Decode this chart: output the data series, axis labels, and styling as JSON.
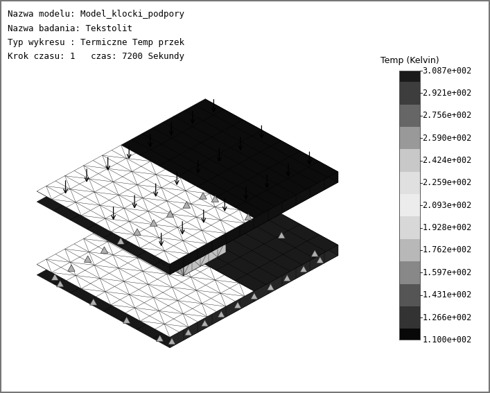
{
  "header_lines": [
    "Nazwa modelu: Model_klocki_podpory",
    "Nazwa badania: Tekstolit",
    "Typ wykresu : Termiczne Temp przek",
    "Krok czasu: 1   czas: 7200 Sekundy"
  ],
  "colorbar_title": "Temp (Kelvin)",
  "colorbar_values": [
    "3.087e+002",
    "2.921e+002",
    "2.756e+002",
    "2.590e+002",
    "2.424e+002",
    "2.259e+002",
    "2.093e+002",
    "1.928e+002",
    "1.762e+002",
    "1.597e+002",
    "1.431e+002",
    "1.266e+002",
    "1.100e+002"
  ],
  "colorbar_colors": [
    "#1a1a1a",
    "#3d3d3d",
    "#666666",
    "#999999",
    "#c8c8c8",
    "#e0e0e0",
    "#ececec",
    "#d8d8d8",
    "#b8b8b8",
    "#888888",
    "#555555",
    "#333333",
    "#080808"
  ],
  "bg_color": "#ffffff",
  "border_color": "#888888",
  "fig_width": 7.07,
  "fig_height": 5.67,
  "dpi": 100,
  "header_fontsize": 9,
  "header_font": "monospace",
  "colorbar_title_fontsize": 9,
  "colorbar_label_fontsize": 8.5
}
